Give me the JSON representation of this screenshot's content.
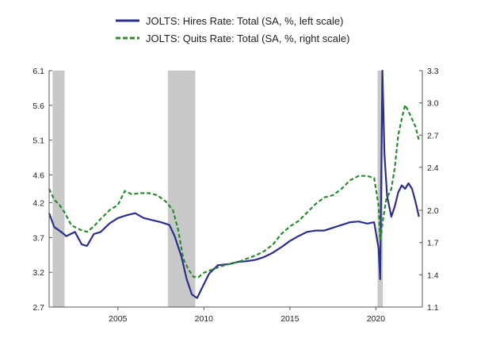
{
  "chart_data": {
    "type": "line",
    "title": "",
    "xlabel": "",
    "legend_position": "top",
    "grid": false,
    "x_unit": "year",
    "xlim": [
      2001.0,
      2022.7
    ],
    "x_ticks": [
      2005,
      2010,
      2015,
      2020
    ],
    "left_axis": {
      "ylim": [
        2.7,
        6.1
      ],
      "ticks": [
        "2.7",
        "3.2",
        "3.7",
        "4.2",
        "4.6",
        "5.1",
        "5.6",
        "6.1"
      ],
      "tick_values": [
        2.7,
        3.2,
        3.7,
        4.2,
        4.6,
        5.1,
        5.6,
        6.1
      ]
    },
    "right_axis": {
      "ylim": [
        1.1,
        3.3
      ],
      "ticks": [
        "1.1",
        "1.4",
        "1.7",
        "2.0",
        "2.4",
        "2.7",
        "3.0",
        "3.3"
      ],
      "tick_values": [
        1.1,
        1.4,
        1.7,
        2.0,
        2.4,
        2.7,
        3.0,
        3.3
      ]
    },
    "recessions": [
      [
        2001.2,
        2001.9
      ],
      [
        2007.9,
        2009.5
      ],
      [
        2020.1,
        2020.4
      ]
    ],
    "series": [
      {
        "name": "JOLTS: Hires Rate: Total (SA, %, left scale)",
        "axis": "left",
        "color": "#2b2f8a",
        "dash": "solid",
        "points": [
          [
            2001.0,
            4.05
          ],
          [
            2001.3,
            3.85
          ],
          [
            2001.7,
            3.78
          ],
          [
            2002.0,
            3.72
          ],
          [
            2002.5,
            3.78
          ],
          [
            2002.9,
            3.6
          ],
          [
            2003.2,
            3.58
          ],
          [
            2003.6,
            3.75
          ],
          [
            2004.0,
            3.78
          ],
          [
            2004.5,
            3.9
          ],
          [
            2005.0,
            3.98
          ],
          [
            2005.5,
            4.02
          ],
          [
            2006.0,
            4.05
          ],
          [
            2006.5,
            3.98
          ],
          [
            2007.0,
            3.95
          ],
          [
            2007.5,
            3.92
          ],
          [
            2008.0,
            3.88
          ],
          [
            2008.3,
            3.72
          ],
          [
            2008.7,
            3.42
          ],
          [
            2009.0,
            3.1
          ],
          [
            2009.3,
            2.88
          ],
          [
            2009.6,
            2.83
          ],
          [
            2009.9,
            2.98
          ],
          [
            2010.3,
            3.18
          ],
          [
            2010.8,
            3.3
          ],
          [
            2011.5,
            3.32
          ],
          [
            2012.0,
            3.35
          ],
          [
            2012.5,
            3.36
          ],
          [
            2013.0,
            3.38
          ],
          [
            2013.5,
            3.42
          ],
          [
            2014.0,
            3.48
          ],
          [
            2014.5,
            3.56
          ],
          [
            2015.0,
            3.65
          ],
          [
            2015.5,
            3.72
          ],
          [
            2016.0,
            3.78
          ],
          [
            2016.5,
            3.8
          ],
          [
            2017.0,
            3.8
          ],
          [
            2017.5,
            3.84
          ],
          [
            2018.0,
            3.88
          ],
          [
            2018.5,
            3.92
          ],
          [
            2019.0,
            3.93
          ],
          [
            2019.5,
            3.9
          ],
          [
            2019.9,
            3.92
          ],
          [
            2020.15,
            3.55
          ],
          [
            2020.25,
            3.1
          ],
          [
            2020.38,
            6.1
          ],
          [
            2020.5,
            4.9
          ],
          [
            2020.65,
            4.3
          ],
          [
            2020.9,
            4.0
          ],
          [
            2021.1,
            4.15
          ],
          [
            2021.3,
            4.35
          ],
          [
            2021.5,
            4.45
          ],
          [
            2021.7,
            4.4
          ],
          [
            2021.9,
            4.48
          ],
          [
            2022.1,
            4.4
          ],
          [
            2022.3,
            4.22
          ],
          [
            2022.5,
            4.0
          ]
        ]
      },
      {
        "name": "JOLTS: Quits Rate: Total (SA, %, right scale)",
        "axis": "right",
        "color": "#2a8a2e",
        "dash": "dashed",
        "points": [
          [
            2001.0,
            2.2
          ],
          [
            2001.3,
            2.1
          ],
          [
            2001.6,
            2.05
          ],
          [
            2001.9,
            1.98
          ],
          [
            2002.3,
            1.86
          ],
          [
            2002.8,
            1.82
          ],
          [
            2003.2,
            1.8
          ],
          [
            2003.6,
            1.85
          ],
          [
            2004.0,
            1.92
          ],
          [
            2004.5,
            2.0
          ],
          [
            2005.0,
            2.05
          ],
          [
            2005.4,
            2.18
          ],
          [
            2005.8,
            2.15
          ],
          [
            2006.3,
            2.16
          ],
          [
            2006.8,
            2.16
          ],
          [
            2007.3,
            2.14
          ],
          [
            2007.8,
            2.08
          ],
          [
            2008.2,
            2.0
          ],
          [
            2008.5,
            1.82
          ],
          [
            2008.8,
            1.55
          ],
          [
            2009.1,
            1.45
          ],
          [
            2009.4,
            1.38
          ],
          [
            2009.7,
            1.38
          ],
          [
            2010.0,
            1.42
          ],
          [
            2010.5,
            1.45
          ],
          [
            2011.0,
            1.48
          ],
          [
            2011.5,
            1.5
          ],
          [
            2012.0,
            1.52
          ],
          [
            2012.5,
            1.55
          ],
          [
            2013.0,
            1.58
          ],
          [
            2013.5,
            1.62
          ],
          [
            2014.0,
            1.68
          ],
          [
            2014.5,
            1.78
          ],
          [
            2015.0,
            1.85
          ],
          [
            2015.5,
            1.9
          ],
          [
            2016.0,
            1.98
          ],
          [
            2016.5,
            2.06
          ],
          [
            2017.0,
            2.12
          ],
          [
            2017.5,
            2.14
          ],
          [
            2018.0,
            2.2
          ],
          [
            2018.5,
            2.28
          ],
          [
            2019.0,
            2.32
          ],
          [
            2019.5,
            2.32
          ],
          [
            2019.9,
            2.3
          ],
          [
            2020.15,
            2.05
          ],
          [
            2020.25,
            1.72
          ],
          [
            2020.4,
            1.9
          ],
          [
            2020.6,
            2.1
          ],
          [
            2020.9,
            2.2
          ],
          [
            2021.1,
            2.4
          ],
          [
            2021.3,
            2.7
          ],
          [
            2021.5,
            2.85
          ],
          [
            2021.7,
            2.98
          ],
          [
            2021.9,
            2.92
          ],
          [
            2022.1,
            2.85
          ],
          [
            2022.3,
            2.78
          ],
          [
            2022.5,
            2.65
          ]
        ]
      }
    ]
  }
}
